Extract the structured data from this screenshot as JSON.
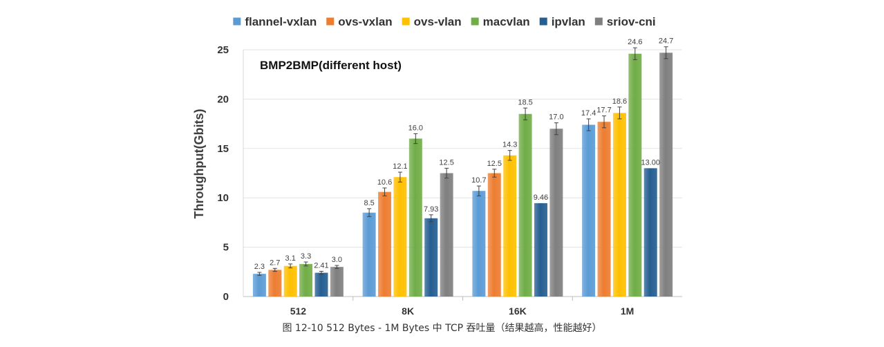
{
  "chart_data": {
    "type": "bar",
    "title": "BMP2BMP(different host)",
    "ylabel": "Throughput(Gbits)",
    "xlabel": "",
    "ylim": [
      0,
      25
    ],
    "yticks": [
      "0",
      "5",
      "10",
      "15",
      "20",
      "25"
    ],
    "grid": true,
    "legend_position": "top",
    "error_bars": true,
    "categories": [
      "512",
      "8K",
      "16K",
      "1M"
    ],
    "series": [
      {
        "name": "flannel-vxlan",
        "color": "#5B9BD5",
        "values": [
          2.3,
          8.5,
          10.7,
          17.4
        ],
        "labels": [
          "2.3",
          "8.5",
          "10.7",
          "17.4"
        ],
        "errors": [
          0.15,
          0.4,
          0.5,
          0.6
        ]
      },
      {
        "name": "ovs-vxlan",
        "color": "#ED7D31",
        "values": [
          2.7,
          10.6,
          12.5,
          17.7
        ],
        "labels": [
          "2.7",
          "10.6",
          "12.5",
          "17.7"
        ],
        "errors": [
          0.15,
          0.4,
          0.4,
          0.6
        ]
      },
      {
        "name": "ovs-vlan",
        "color": "#FFC000",
        "values": [
          3.1,
          12.1,
          14.3,
          18.6
        ],
        "labels": [
          "3.1",
          "12.1",
          "14.3",
          "18.6"
        ],
        "errors": [
          0.2,
          0.5,
          0.5,
          0.6
        ]
      },
      {
        "name": "macvlan",
        "color": "#70AD47",
        "values": [
          3.3,
          16.0,
          18.5,
          24.6
        ],
        "labels": [
          "3.3",
          "16.0",
          "18.5",
          "24.6"
        ],
        "errors": [
          0.2,
          0.5,
          0.6,
          0.6
        ]
      },
      {
        "name": "ipvlan",
        "color": "#255E91",
        "values": [
          2.41,
          7.93,
          9.46,
          13.0
        ],
        "labels": [
          "2.41",
          "7.93",
          "9.46",
          "13.00"
        ],
        "errors": [
          0.15,
          0.35,
          0.0,
          0.0
        ]
      },
      {
        "name": "sriov-cni",
        "color": "#7F7F7F",
        "values": [
          3.0,
          12.5,
          17.0,
          24.7
        ],
        "labels": [
          "3.0",
          "12.5",
          "17.0",
          "24.7"
        ],
        "errors": [
          0.15,
          0.5,
          0.6,
          0.6
        ]
      }
    ]
  },
  "caption": "图 12-10 512 Bytes - 1M Bytes 中 TCP 吞吐量（结果越高，性能越好）"
}
